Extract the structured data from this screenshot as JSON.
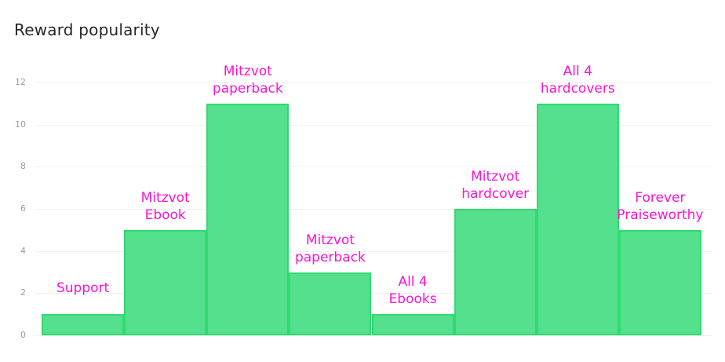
{
  "header": {
    "title": "Reward popularity"
  },
  "chart_data": {
    "type": "bar",
    "title": "Reward popularity",
    "categories": [
      "Support",
      "Mitzvot\nEbook",
      "Mitzvot\npaperback",
      "Mitzvot\npaperback",
      "All 4\nEbooks",
      "Mitzvot\nhardcover",
      "All 4\nhardcovers",
      "Forever\nPraiseworthy"
    ],
    "values": [
      1,
      5,
      11,
      3,
      1,
      6,
      11,
      5
    ],
    "xlabel": "",
    "ylabel": "",
    "ylim": [
      0,
      12
    ],
    "yticks": [
      0,
      2,
      4,
      6,
      8,
      10,
      12
    ],
    "grid": "horizontal",
    "legend": "none",
    "bar_gap": 0,
    "colors": {
      "bar_fill": "#54e08c",
      "bar_border": "#2edc6f",
      "category_label": "#fb12d7",
      "tick_label": "#9b9b9b",
      "gridline": "#f0f0f1",
      "title": "#24262a"
    }
  }
}
